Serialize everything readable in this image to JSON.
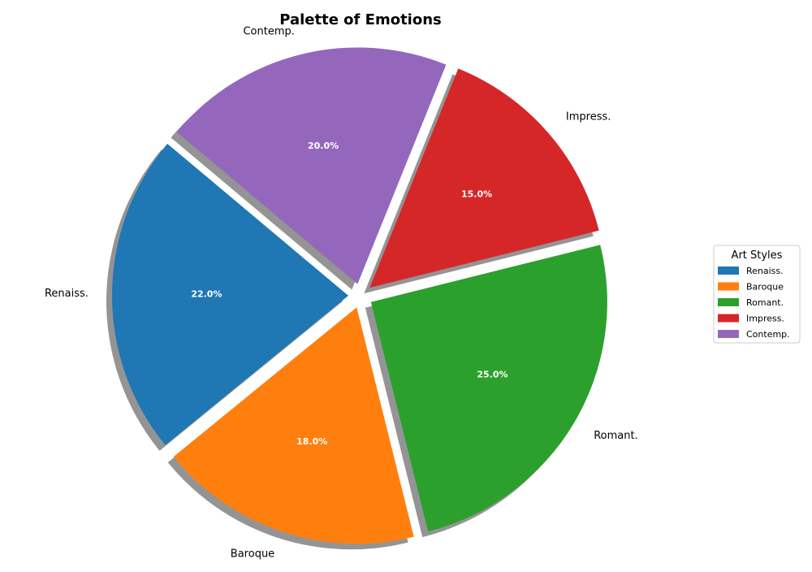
{
  "chart_data": {
    "type": "pie",
    "title": "Palette of Emotions",
    "categories": [
      "Renaiss.",
      "Baroque",
      "Romant.",
      "Impress.",
      "Contemp."
    ],
    "values": [
      22.0,
      18.0,
      25.0,
      15.0,
      20.0
    ],
    "percent_labels": [
      "22.0%",
      "18.0%",
      "25.0%",
      "15.0%",
      "20.0%"
    ],
    "colors": [
      "#1f77b4",
      "#ff7f0e",
      "#2ca02c",
      "#d62728",
      "#9467bd"
    ],
    "start_angle_deg": 140,
    "explode": true,
    "shadow": true,
    "legend": {
      "title": "Art Styles",
      "placement": "center-right",
      "entries": [
        "Renaiss.",
        "Baroque",
        "Romant.",
        "Impress.",
        "Contemp."
      ]
    }
  }
}
